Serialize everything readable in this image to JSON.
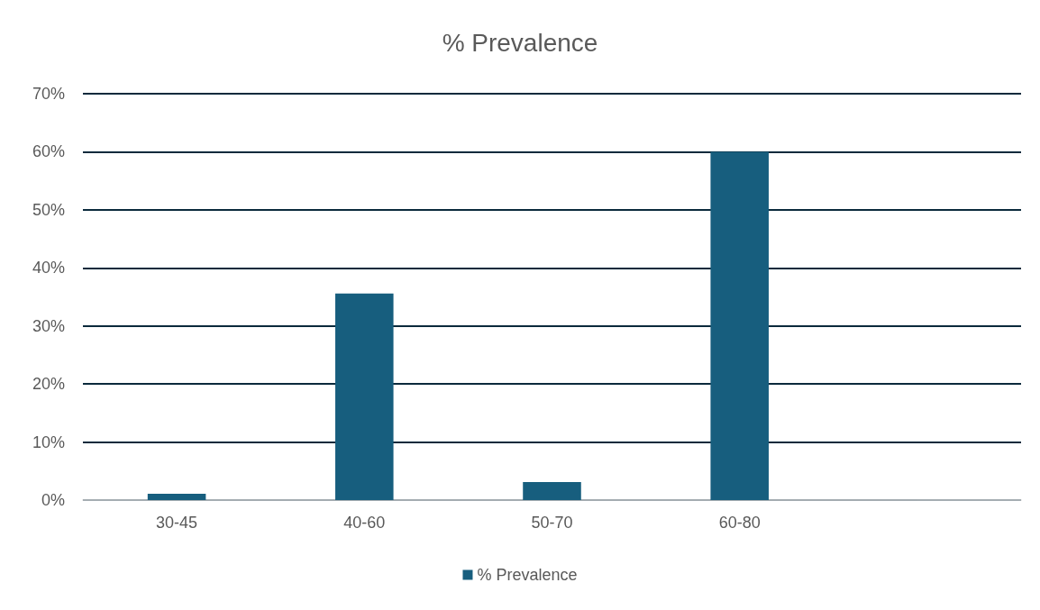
{
  "chart_data": {
    "type": "bar",
    "title": "% Prevalence",
    "categories": [
      "30-45",
      "40-60",
      "50-70",
      "60-80",
      null
    ],
    "series": [
      {
        "name": "% Prevalence",
        "color": "#175e7e",
        "values": [
          1.1,
          35.6,
          3.1,
          60,
          null
        ]
      }
    ],
    "ylim": [
      0,
      70
    ],
    "yticks": [
      {
        "value": 0,
        "label": "0%"
      },
      {
        "value": 10,
        "label": "10%"
      },
      {
        "value": 20,
        "label": "20%"
      },
      {
        "value": 30,
        "label": "30%"
      },
      {
        "value": 40,
        "label": "40%"
      },
      {
        "value": 50,
        "label": "50%"
      },
      {
        "value": 60,
        "label": "60%"
      },
      {
        "value": 70,
        "label": "70%"
      }
    ],
    "grid": "y",
    "legend": "bottom"
  }
}
